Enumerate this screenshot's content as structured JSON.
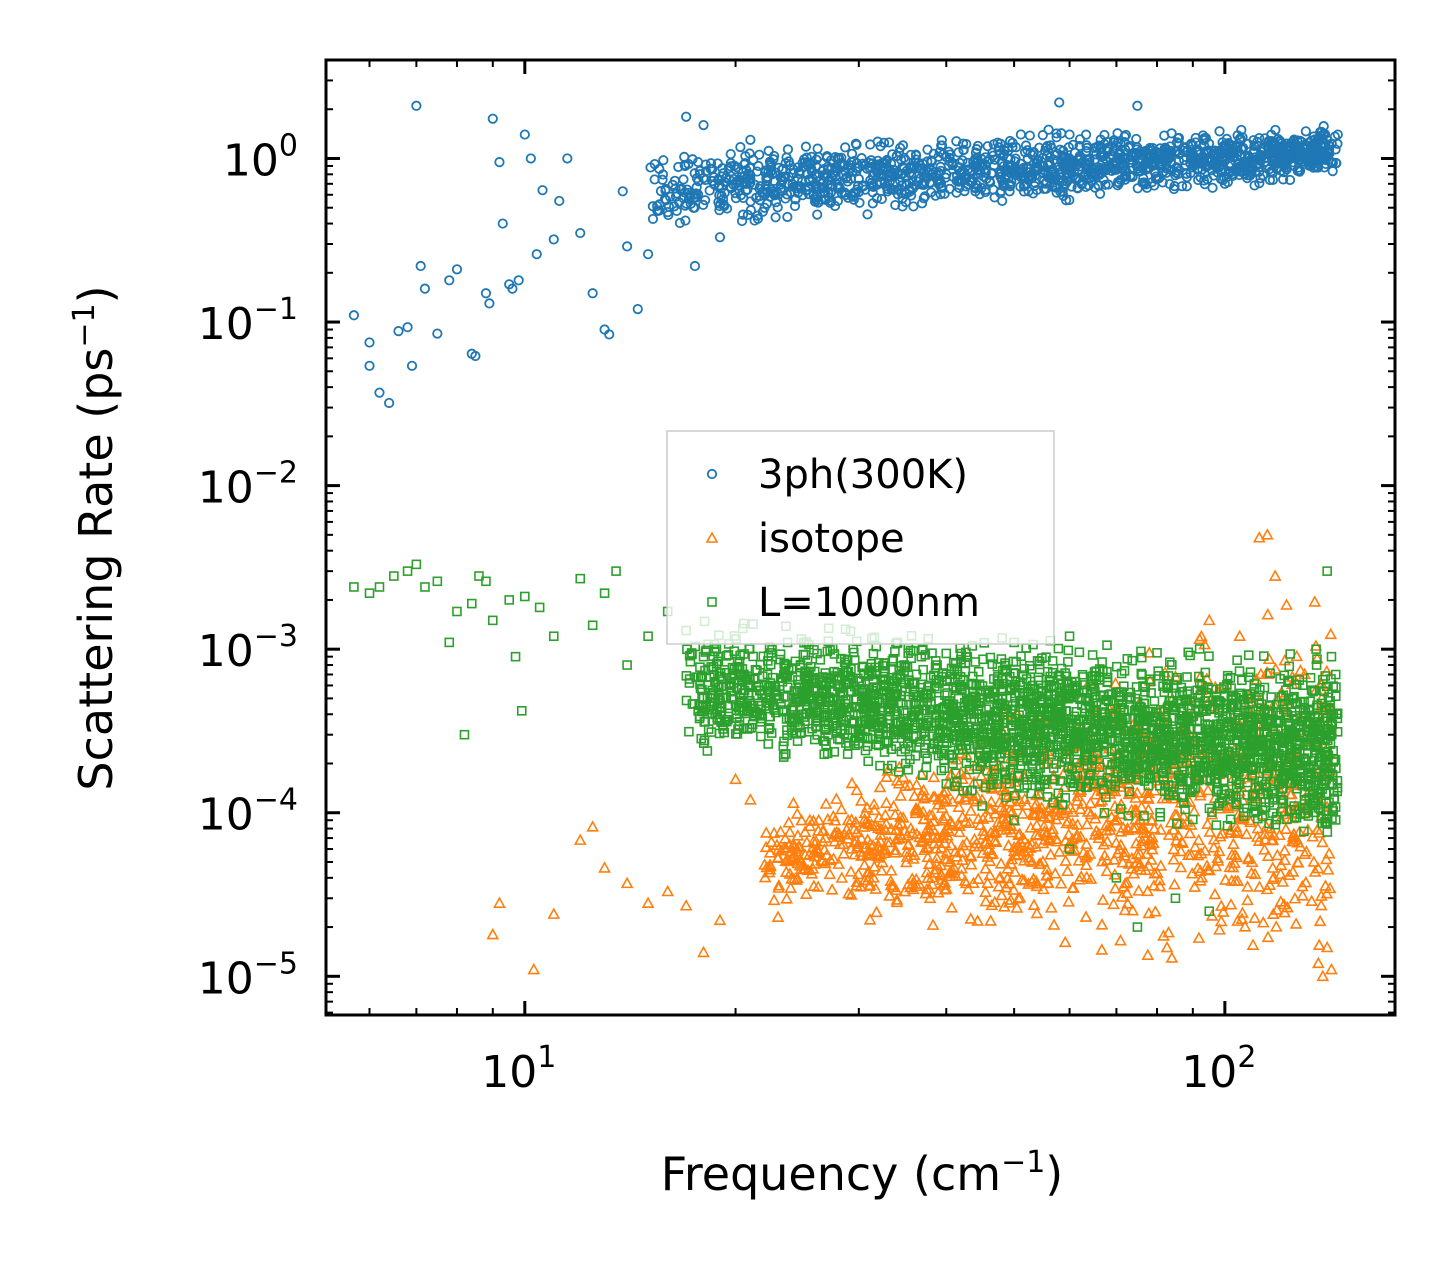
{
  "chart_data": {
    "type": "scatter",
    "title": "",
    "xlabel": "Frequency (cm",
    "xlabel_sup": "−1",
    "xlabel_end": ")",
    "ylabel": "Scattering Rate (ps",
    "ylabel_sup": "−1",
    "ylabel_end": ")",
    "xscale": "log",
    "yscale": "log",
    "xlim": [
      5.2,
      175
    ],
    "ylim": [
      5.8e-06,
      4.0
    ],
    "xticks": [
      {
        "value": 10,
        "base": "10",
        "exp": "1"
      },
      {
        "value": 100,
        "base": "10",
        "exp": "2"
      }
    ],
    "yticks": [
      {
        "value": 1,
        "base": "10",
        "exp": "0"
      },
      {
        "value": 0.1,
        "base": "10",
        "exp": "−1"
      },
      {
        "value": 0.01,
        "base": "10",
        "exp": "−2"
      },
      {
        "value": 0.001,
        "base": "10",
        "exp": "−3"
      },
      {
        "value": 0.0001,
        "base": "10",
        "exp": "−4"
      },
      {
        "value": 1e-05,
        "base": "10",
        "exp": "−5"
      }
    ],
    "legend_position": "center",
    "series": [
      {
        "name": "3ph(300K)",
        "marker": "circle",
        "color": "#1f77b4",
        "points": [
          [
            5.7,
            0.11
          ],
          [
            6.0,
            0.075
          ],
          [
            6.0,
            0.054
          ],
          [
            6.2,
            0.037
          ],
          [
            6.4,
            0.032
          ],
          [
            6.6,
            0.088
          ],
          [
            6.8,
            0.093
          ],
          [
            6.9,
            0.054
          ],
          [
            7.0,
            2.1
          ],
          [
            7.1,
            0.22
          ],
          [
            7.2,
            0.16
          ],
          [
            7.5,
            0.085
          ],
          [
            7.8,
            0.18
          ],
          [
            8.0,
            0.21
          ],
          [
            8.4,
            0.064
          ],
          [
            8.5,
            0.062
          ],
          [
            8.8,
            0.15
          ],
          [
            8.9,
            0.13
          ],
          [
            9.0,
            1.75
          ],
          [
            9.2,
            0.95
          ],
          [
            9.3,
            0.4
          ],
          [
            9.5,
            0.17
          ],
          [
            9.6,
            0.16
          ],
          [
            9.8,
            0.18
          ],
          [
            10.0,
            1.4
          ],
          [
            10.2,
            1.0
          ],
          [
            10.4,
            0.26
          ],
          [
            10.6,
            0.64
          ],
          [
            11.0,
            0.32
          ],
          [
            11.2,
            0.55
          ],
          [
            11.5,
            1.0
          ],
          [
            12.0,
            0.35
          ],
          [
            12.5,
            0.15
          ],
          [
            13.0,
            0.09
          ],
          [
            13.2,
            0.084
          ],
          [
            13.8,
            0.63
          ],
          [
            14.0,
            0.29
          ],
          [
            14.5,
            0.12
          ],
          [
            15.0,
            0.26
          ],
          [
            16.0,
            0.47
          ],
          [
            17.0,
            1.8
          ],
          [
            17.5,
            0.22
          ],
          [
            18.0,
            1.6
          ],
          [
            19.0,
            0.33
          ],
          [
            20.0,
            0.7
          ],
          [
            21.0,
            1.3
          ],
          [
            22.0,
            0.5
          ],
          [
            24.0,
            0.62
          ],
          [
            26.0,
            0.7
          ],
          [
            28.0,
            0.55
          ],
          [
            30.0,
            0.75
          ],
          [
            33.0,
            0.65
          ],
          [
            36.0,
            0.9
          ],
          [
            40.0,
            0.8
          ],
          [
            44.0,
            1.0
          ],
          [
            48.0,
            0.95
          ],
          [
            52.0,
            1.2
          ],
          [
            56.0,
            1.5
          ],
          [
            58.0,
            2.2
          ],
          [
            60.0,
            1.4
          ],
          [
            65.0,
            1.1
          ],
          [
            70.0,
            1.2
          ],
          [
            75.0,
            2.1
          ],
          [
            80.0,
            1.0
          ],
          [
            85.0,
            1.1
          ],
          [
            90.0,
            1.2
          ],
          [
            95.0,
            0.95
          ],
          [
            100.0,
            0.7
          ],
          [
            105.0,
            1.3
          ],
          [
            110.0,
            1.1
          ],
          [
            115.0,
            1.2
          ],
          [
            120.0,
            1.0
          ],
          [
            125.0,
            1.1
          ],
          [
            130.0,
            1.0
          ],
          [
            135.0,
            1.2
          ],
          [
            140.0,
            1.3
          ],
          [
            145.0,
            1.4
          ]
        ],
        "band": {
          "x_range": [
            15,
            145
          ],
          "y_start": [
            0.35,
            1.2
          ],
          "y_end": [
            0.75,
            1.6
          ],
          "count": 1500
        }
      },
      {
        "name": "isotope",
        "marker": "triangle",
        "color": "#ff7f0e",
        "points": [
          [
            9.0,
            1.8e-05
          ],
          [
            9.2,
            2.8e-05
          ],
          [
            10.3,
            1.1e-05
          ],
          [
            11.0,
            2.4e-05
          ],
          [
            12.0,
            6.8e-05
          ],
          [
            12.5,
            8.2e-05
          ],
          [
            13.0,
            4.6e-05
          ],
          [
            14.0,
            3.7e-05
          ],
          [
            15.0,
            2.8e-05
          ],
          [
            16.0,
            3.3e-05
          ],
          [
            17.0,
            2.7e-05
          ],
          [
            18.0,
            1.4e-05
          ],
          [
            19.0,
            2.2e-05
          ],
          [
            20.0,
            0.00016
          ],
          [
            21.0,
            0.00012
          ],
          [
            22.0,
            4.8e-05
          ],
          [
            23.0,
            2.3e-05
          ],
          [
            25.0,
            4.5e-05
          ],
          [
            27.0,
            5.5e-05
          ],
          [
            29.0,
            3.2e-05
          ],
          [
            31.0,
            8.5e-05
          ],
          [
            33.0,
            0.00018
          ],
          [
            36.0,
            5.5e-05
          ],
          [
            40.0,
            0.00012
          ],
          [
            45.0,
            0.00012
          ],
          [
            50.0,
            9e-05
          ],
          [
            60.0,
            0.00025
          ],
          [
            70.0,
            0.00045
          ],
          [
            78.0,
            0.00095
          ],
          [
            85.0,
            0.00068
          ],
          [
            92.0,
            0.00115
          ],
          [
            95.0,
            0.0015
          ],
          [
            100.0,
            0.0006
          ],
          [
            105.0,
            0.0012
          ],
          [
            112.0,
            0.0048
          ],
          [
            115.0,
            0.005
          ],
          [
            118.0,
            0.0028
          ],
          [
            122.0,
            0.0004
          ],
          [
            130.0,
            0.0001
          ],
          [
            134.0,
            5e-05
          ],
          [
            136.0,
            1.2e-05
          ],
          [
            138.0,
            1e-05
          ],
          [
            140.0,
            1.5e-05
          ],
          [
            142.0,
            1.1e-05
          ]
        ],
        "band": {
          "x_range": [
            22,
            142
          ],
          "y_start": [
            2.5e-05,
            0.0001
          ],
          "y_end": [
            1e-05,
            0.0025
          ],
          "count": 1300
        }
      },
      {
        "name": "L=1000nm",
        "marker": "square",
        "color": "#2ca02c",
        "points": [
          [
            5.7,
            0.0024
          ],
          [
            6.0,
            0.0022
          ],
          [
            6.2,
            0.0024
          ],
          [
            6.5,
            0.0028
          ],
          [
            6.8,
            0.003
          ],
          [
            7.0,
            0.0033
          ],
          [
            7.2,
            0.0024
          ],
          [
            7.5,
            0.0026
          ],
          [
            7.8,
            0.0011
          ],
          [
            8.0,
            0.0017
          ],
          [
            8.4,
            0.0019
          ],
          [
            8.6,
            0.0028
          ],
          [
            8.8,
            0.0026
          ],
          [
            9.0,
            0.0015
          ],
          [
            9.5,
            0.002
          ],
          [
            9.7,
            0.0009
          ],
          [
            10.0,
            0.0021
          ],
          [
            10.5,
            0.0018
          ],
          [
            11.0,
            0.0012
          ],
          [
            12.0,
            0.0027
          ],
          [
            12.5,
            0.0014
          ],
          [
            13.0,
            0.0022
          ],
          [
            13.5,
            0.003
          ],
          [
            14.0,
            0.0008
          ],
          [
            15.0,
            0.0012
          ],
          [
            16.0,
            0.0017
          ],
          [
            17.0,
            0.0013
          ],
          [
            18.0,
            0.0009
          ],
          [
            8.2,
            0.0003
          ],
          [
            9.9,
            0.00042
          ],
          [
            22.0,
            0.0006
          ],
          [
            25.0,
            0.0004
          ],
          [
            30.0,
            0.0003
          ],
          [
            35.0,
            0.0002
          ],
          [
            40.0,
            0.00015
          ],
          [
            45.0,
            0.00011
          ],
          [
            50.0,
            9e-05
          ],
          [
            60.0,
            6e-05
          ],
          [
            70.0,
            4e-05
          ],
          [
            75.0,
            2e-05
          ],
          [
            85.0,
            3e-05
          ],
          [
            95.0,
            2.5e-05
          ],
          [
            110.0,
            0.0001
          ],
          [
            125.0,
            0.0005
          ],
          [
            135.0,
            0.001
          ],
          [
            140.0,
            0.003
          ],
          [
            142.0,
            0.0009
          ],
          [
            144.0,
            0.0007
          ],
          [
            60.0,
            0.0012
          ],
          [
            50.0,
            0.0011
          ],
          [
            80.0,
            0.00095
          ]
        ],
        "band": {
          "x_range": [
            17,
            145
          ],
          "y_start": [
            0.00025,
            0.0015
          ],
          "y_end": [
            6e-05,
            0.0009
          ],
          "count": 2800
        }
      }
    ]
  },
  "legend": {
    "items": [
      {
        "label": "3ph(300K)"
      },
      {
        "label": "isotope"
      },
      {
        "label": "L=1000nm"
      }
    ]
  }
}
